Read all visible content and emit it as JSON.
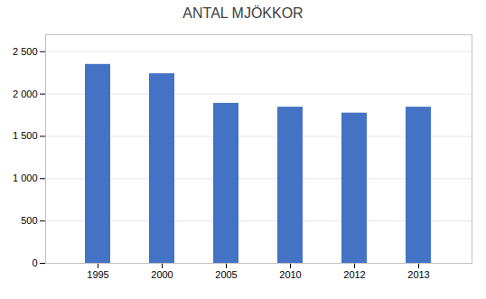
{
  "chart_data": {
    "type": "bar",
    "title": "ANTAL MJÖKKOR",
    "categories": [
      "1995",
      "2000",
      "2005",
      "2010",
      "2012",
      "2013"
    ],
    "values": [
      2350,
      2240,
      1890,
      1845,
      1775,
      1845
    ],
    "color": "#4472C4",
    "ylim": [
      0,
      2700
    ],
    "yticks": [
      0,
      500,
      {
        "value": 1000,
        "label": "1 000"
      },
      {
        "value": 1500,
        "label": "1 500"
      },
      {
        "value": 2000,
        "label": "2 000"
      },
      {
        "value": 2500,
        "label": "2 500"
      }
    ],
    "grid": true
  }
}
